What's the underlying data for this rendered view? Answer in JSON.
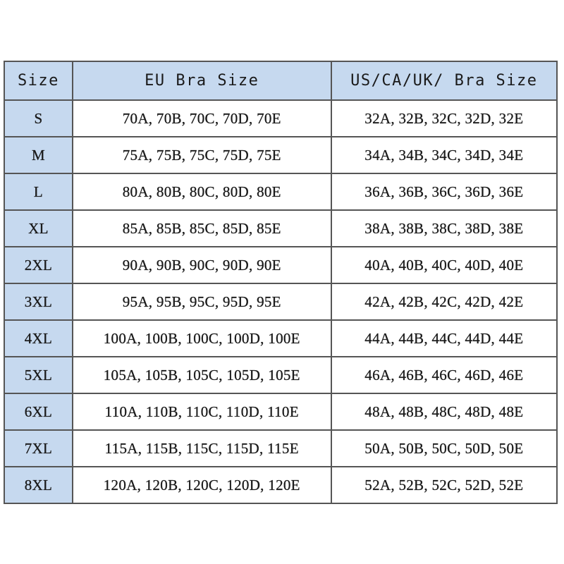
{
  "table": {
    "headers": [
      "Size",
      "EU Bra Size",
      "US/CA/UK/ Bra Size"
    ],
    "rows": [
      [
        "S",
        "70A, 70B, 70C, 70D, 70E",
        "32A, 32B, 32C, 32D, 32E"
      ],
      [
        "M",
        "75A, 75B, 75C, 75D, 75E",
        "34A, 34B, 34C, 34D, 34E"
      ],
      [
        "L",
        "80A, 80B, 80C, 80D, 80E",
        "36A, 36B, 36C, 36D, 36E"
      ],
      [
        "XL",
        "85A, 85B, 85C, 85D, 85E",
        "38A, 38B, 38C, 38D, 38E"
      ],
      [
        "2XL",
        "90A, 90B, 90C, 90D, 90E",
        "40A, 40B, 40C, 40D, 40E"
      ],
      [
        "3XL",
        "95A, 95B, 95C, 95D, 95E",
        "42A, 42B, 42C, 42D, 42E"
      ],
      [
        "4XL",
        "100A, 100B, 100C, 100D, 100E",
        "44A, 44B, 44C, 44D, 44E"
      ],
      [
        "5XL",
        "105A, 105B, 105C, 105D, 105E",
        "46A, 46B, 46C, 46D, 46E"
      ],
      [
        "6XL",
        "110A, 110B, 110C, 110D, 110E",
        "48A, 48B, 48C, 48D, 48E"
      ],
      [
        "7XL",
        "115A, 115B, 115C, 115D, 115E",
        "50A, 50B, 50C, 50D, 50E"
      ],
      [
        "8XL",
        "120A, 120B, 120C, 120D, 120E",
        "52A, 52B, 52C, 52D, 52E"
      ]
    ]
  },
  "colors": {
    "header_bg": "#c6d9ef",
    "border": "#555555"
  }
}
